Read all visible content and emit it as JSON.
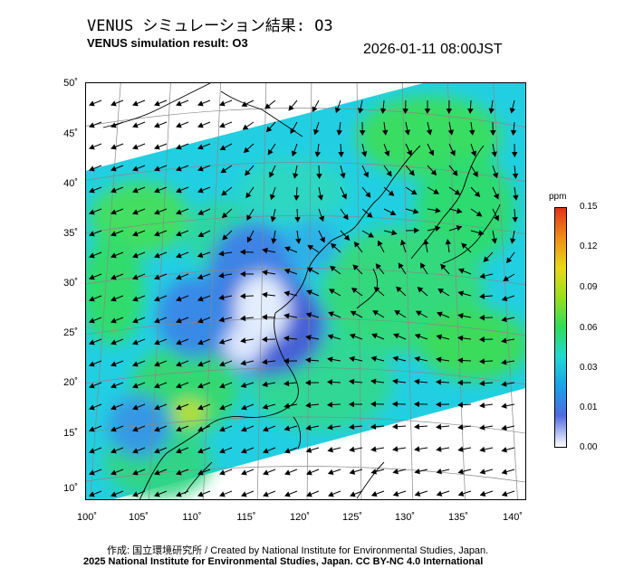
{
  "header": {
    "title_jp": "VENUS シミュレーション結果: O3",
    "title_en": "VENUS simulation result: O3",
    "datetime": "2026-01-11 08:00JST"
  },
  "axes": {
    "lat_labels": [
      "50˚",
      "45˚",
      "40˚",
      "35˚",
      "30˚",
      "25˚",
      "20˚",
      "15˚",
      "10˚"
    ],
    "lon_labels": [
      "100˚",
      "105˚",
      "110˚",
      "115˚",
      "120˚",
      "125˚",
      "130˚",
      "135˚",
      "140˚"
    ]
  },
  "colorbar": {
    "unit": "ppm",
    "ticks": [
      "0.15",
      "0.12",
      "0.09",
      "0.06",
      "0.03",
      "0.01",
      "0.00"
    ],
    "colors": [
      "#ffffff",
      "#4f6be0",
      "#1aa0e8",
      "#22d8d0",
      "#2edc5a",
      "#9be01c",
      "#e8d81a",
      "#ef8a18",
      "#e23418"
    ]
  },
  "footer": {
    "credit_jp": "作成: 国立環境研究所 / Created by National Institute for Environmental Studies, Japan.",
    "credit_en": "2025 National Institute for Environmental Studies, Japan. CC BY-NC 4.0 International"
  },
  "map": {
    "field_colors": {
      "cyan": "#1fd0e6",
      "green": "#33dd66",
      "lightgreen": "#5ee85a",
      "blue": "#3f7fe6",
      "deepblue": "#4a5cd6",
      "white": "#f2f4ff"
    },
    "wind_arrow_color": "#000000"
  }
}
